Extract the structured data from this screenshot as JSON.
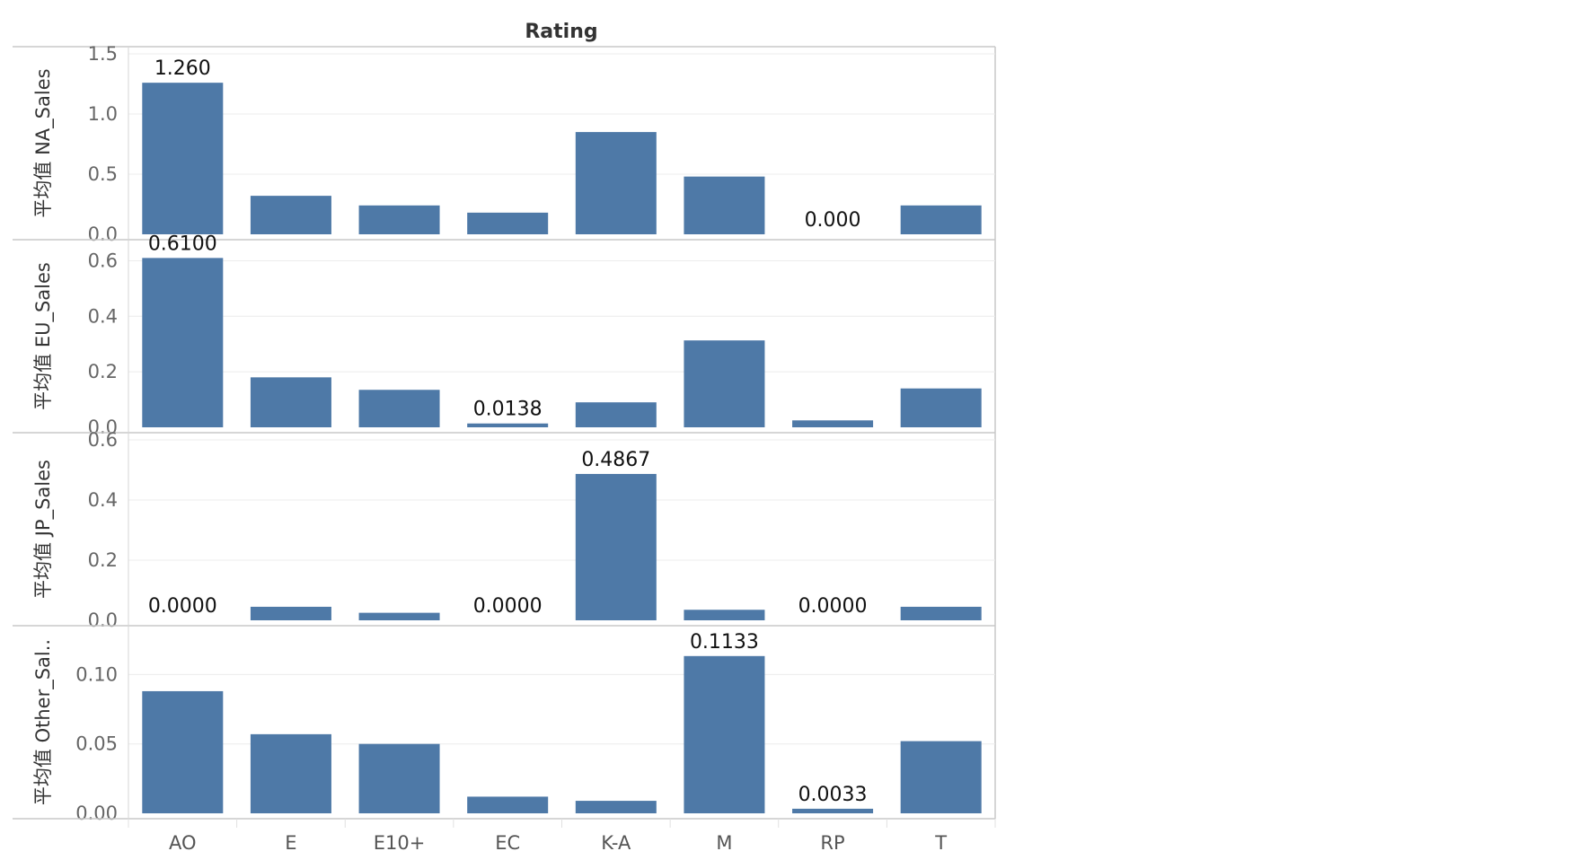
{
  "chart_data": {
    "type": "bar",
    "title": "",
    "column_header": "Rating",
    "categories": [
      "AO",
      "E",
      "E10+",
      "EC",
      "K-A",
      "M",
      "RP",
      "T"
    ],
    "bar_color": "#4e79a7",
    "grid": true,
    "legend": "none",
    "panels": [
      {
        "name": "NA_Sales",
        "ylabel": "平均值 NA_Sales",
        "ylim": [
          0,
          1.5
        ],
        "yticks": [
          0,
          0.5,
          1.0,
          1.5
        ],
        "ytick_labels": [
          "0.0",
          "0.5",
          "1.0",
          "1.5"
        ],
        "values": [
          1.26,
          0.32,
          0.24,
          0.18,
          0.85,
          0.48,
          0.0,
          0.24
        ],
        "labels": [
          "1.260",
          null,
          null,
          null,
          null,
          null,
          "0.000",
          null
        ]
      },
      {
        "name": "EU_Sales",
        "ylabel": "平均值 EU_Sales",
        "ylim": [
          0,
          0.65
        ],
        "yticks": [
          0,
          0.2,
          0.4,
          0.6
        ],
        "ytick_labels": [
          "0.0",
          "0.2",
          "0.4",
          "0.6"
        ],
        "values": [
          0.61,
          0.18,
          0.135,
          0.0138,
          0.09,
          0.313,
          0.025,
          0.14
        ],
        "labels": [
          "0.6100",
          null,
          null,
          "0.0138",
          null,
          null,
          null,
          null
        ]
      },
      {
        "name": "JP_Sales",
        "ylabel": "平均值 JP_Sales",
        "ylim": [
          0,
          0.6
        ],
        "yticks": [
          0,
          0.2,
          0.4,
          0.6
        ],
        "ytick_labels": [
          "0.0",
          "0.2",
          "0.4",
          "0.6"
        ],
        "values": [
          0.0,
          0.045,
          0.025,
          0.0,
          0.4867,
          0.035,
          0.0,
          0.045
        ],
        "labels": [
          "0.0000",
          null,
          null,
          "0.0000",
          "0.4867",
          null,
          "0.0000",
          null
        ]
      },
      {
        "name": "Other_Sales",
        "ylabel": "平均值 Other_Sal..",
        "ylim": [
          0,
          0.13
        ],
        "yticks": [
          0,
          0.05,
          0.1
        ],
        "ytick_labels": [
          "0.00",
          "0.05",
          "0.10"
        ],
        "values": [
          0.088,
          0.057,
          0.05,
          0.012,
          0.009,
          0.1133,
          0.0033,
          0.052
        ],
        "labels": [
          null,
          null,
          null,
          null,
          null,
          "0.1133",
          "0.0033",
          null
        ]
      }
    ]
  }
}
